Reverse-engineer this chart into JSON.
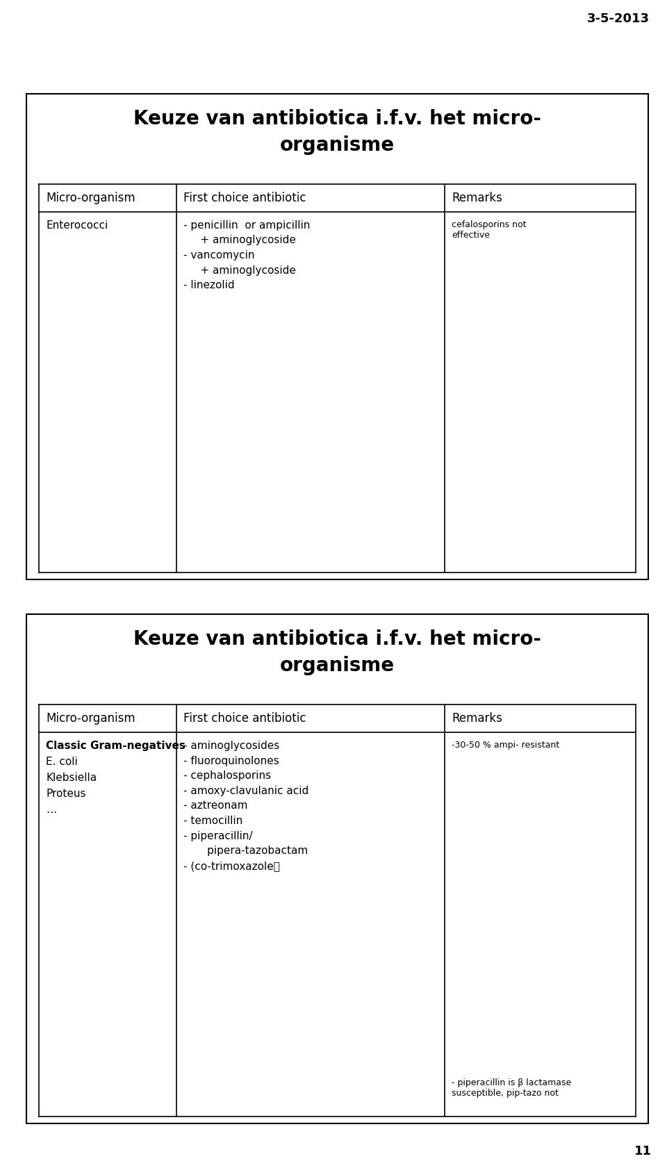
{
  "bg_color": "#ffffff",
  "date_text": "3-5-2013",
  "page_number": "11",
  "fig_width": 9.6,
  "fig_height": 16.84,
  "dpi": 100,
  "slide1": {
    "title_line1": "Keuze van antibiotica i.f.v. het micro-",
    "title_line2": "organisme",
    "title_fontsize": 20,
    "col_headers": [
      "Micro-organism",
      "First choice antibiotic",
      "Remarks"
    ],
    "header_fontsize": 12,
    "data_fontsize": 11,
    "remark_fontsize": 9,
    "rows": [
      {
        "col0": "Enterococci",
        "col1": "- penicillin  or ampicillin\n     + aminoglycoside\n- vancomycin\n     + aminoglycoside\n- linezolid",
        "col2": "cefalosporins not\neffective"
      }
    ]
  },
  "slide2": {
    "title_line1": "Keuze van antibiotica i.f.v. het micro-",
    "title_line2": "organisme",
    "title_fontsize": 20,
    "col_headers": [
      "Micro-organism",
      "First choice antibiotic",
      "Remarks"
    ],
    "header_fontsize": 12,
    "data_fontsize": 11,
    "remark_fontsize": 9,
    "rows": [
      {
        "col0_lines": [
          "Classic Gram-negatives",
          "E. coli",
          "Klebsiella",
          "Proteus",
          "…"
        ],
        "col0_bold": [
          true,
          false,
          false,
          false,
          false
        ],
        "col1": "- aminoglycosides\n- fluoroquinolones\n- cephalosporins\n- amoxy-clavulanic acid\n- aztreonam\n- temocillin\n- piperacillin/\n       pipera-tazobactam\n- (co-trimoxazole）",
        "col2_top": "-30-50 % ampi- resistant",
        "col2_bottom": "- piperacillin is β lactamase\nsusceptible, pip-tazo not"
      }
    ]
  }
}
